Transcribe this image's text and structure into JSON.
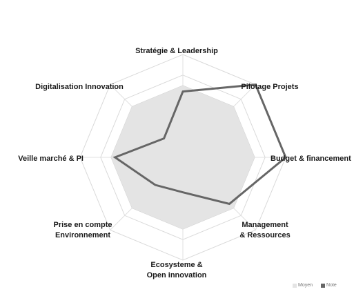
{
  "chart_data": {
    "type": "radar",
    "title": "",
    "categories": [
      "Stratégie & Leadership",
      "Pilotage Projets",
      "Budget & financement",
      "Management & Ressources",
      "Ecosysteme & Open innovation",
      "Prise en compte Environnement",
      "Veille marché & PI",
      "Digitalisation Innovation"
    ],
    "rlim": [
      0,
      5
    ],
    "grid": true,
    "legend_position": "bottom-right",
    "series": [
      {
        "name": "Moyen",
        "style": "filled",
        "color": "#e4e4e4",
        "values": [
          3.5,
          3.5,
          3.5,
          3.5,
          3.5,
          3.5,
          3.5,
          3.5
        ]
      },
      {
        "name": "Note",
        "style": "line",
        "color": "#666666",
        "values": [
          3.2,
          5.0,
          5.0,
          3.2,
          1.7,
          1.9,
          3.3,
          1.3
        ]
      }
    ]
  },
  "legend": {
    "items": [
      "Moyen",
      "Note"
    ]
  }
}
